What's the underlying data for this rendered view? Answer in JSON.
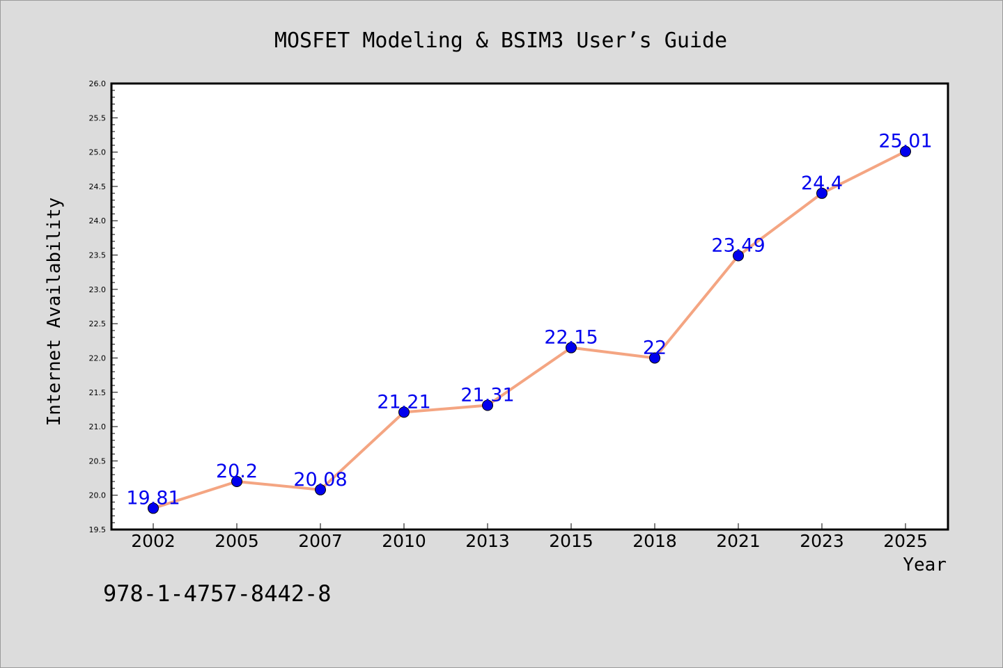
{
  "chart_data": {
    "type": "line",
    "title": "MOSFET Modeling & BSIM3 User’s Guide",
    "xlabel": "Year",
    "ylabel": "Internet Availability",
    "categories": [
      "2002",
      "2005",
      "2007",
      "2010",
      "2013",
      "2015",
      "2018",
      "2021",
      "2023",
      "2025"
    ],
    "series": [
      {
        "values": [
          19.81,
          20.2,
          20.08,
          21.21,
          21.31,
          22.15,
          22,
          23.49,
          24.4,
          25.01
        ],
        "labels": [
          "19.81",
          "20.2",
          "20.08",
          "21.21",
          "21.31",
          "22.15",
          "22",
          "23.49",
          "24.4",
          "25.01"
        ]
      }
    ],
    "ylim": [
      19.5,
      26.0
    ],
    "yticks": [
      "19.5",
      "20.0",
      "20.5",
      "21.0",
      "21.5",
      "22.0",
      "22.5",
      "23.0",
      "23.5",
      "24.0",
      "24.5",
      "25.0",
      "25.5",
      "26.0"
    ],
    "grid": false,
    "line_color": "#f4a582",
    "marker_color": "#0000ee",
    "label_color": "#0000ee"
  },
  "footnote": "978-1-4757-8442-8"
}
